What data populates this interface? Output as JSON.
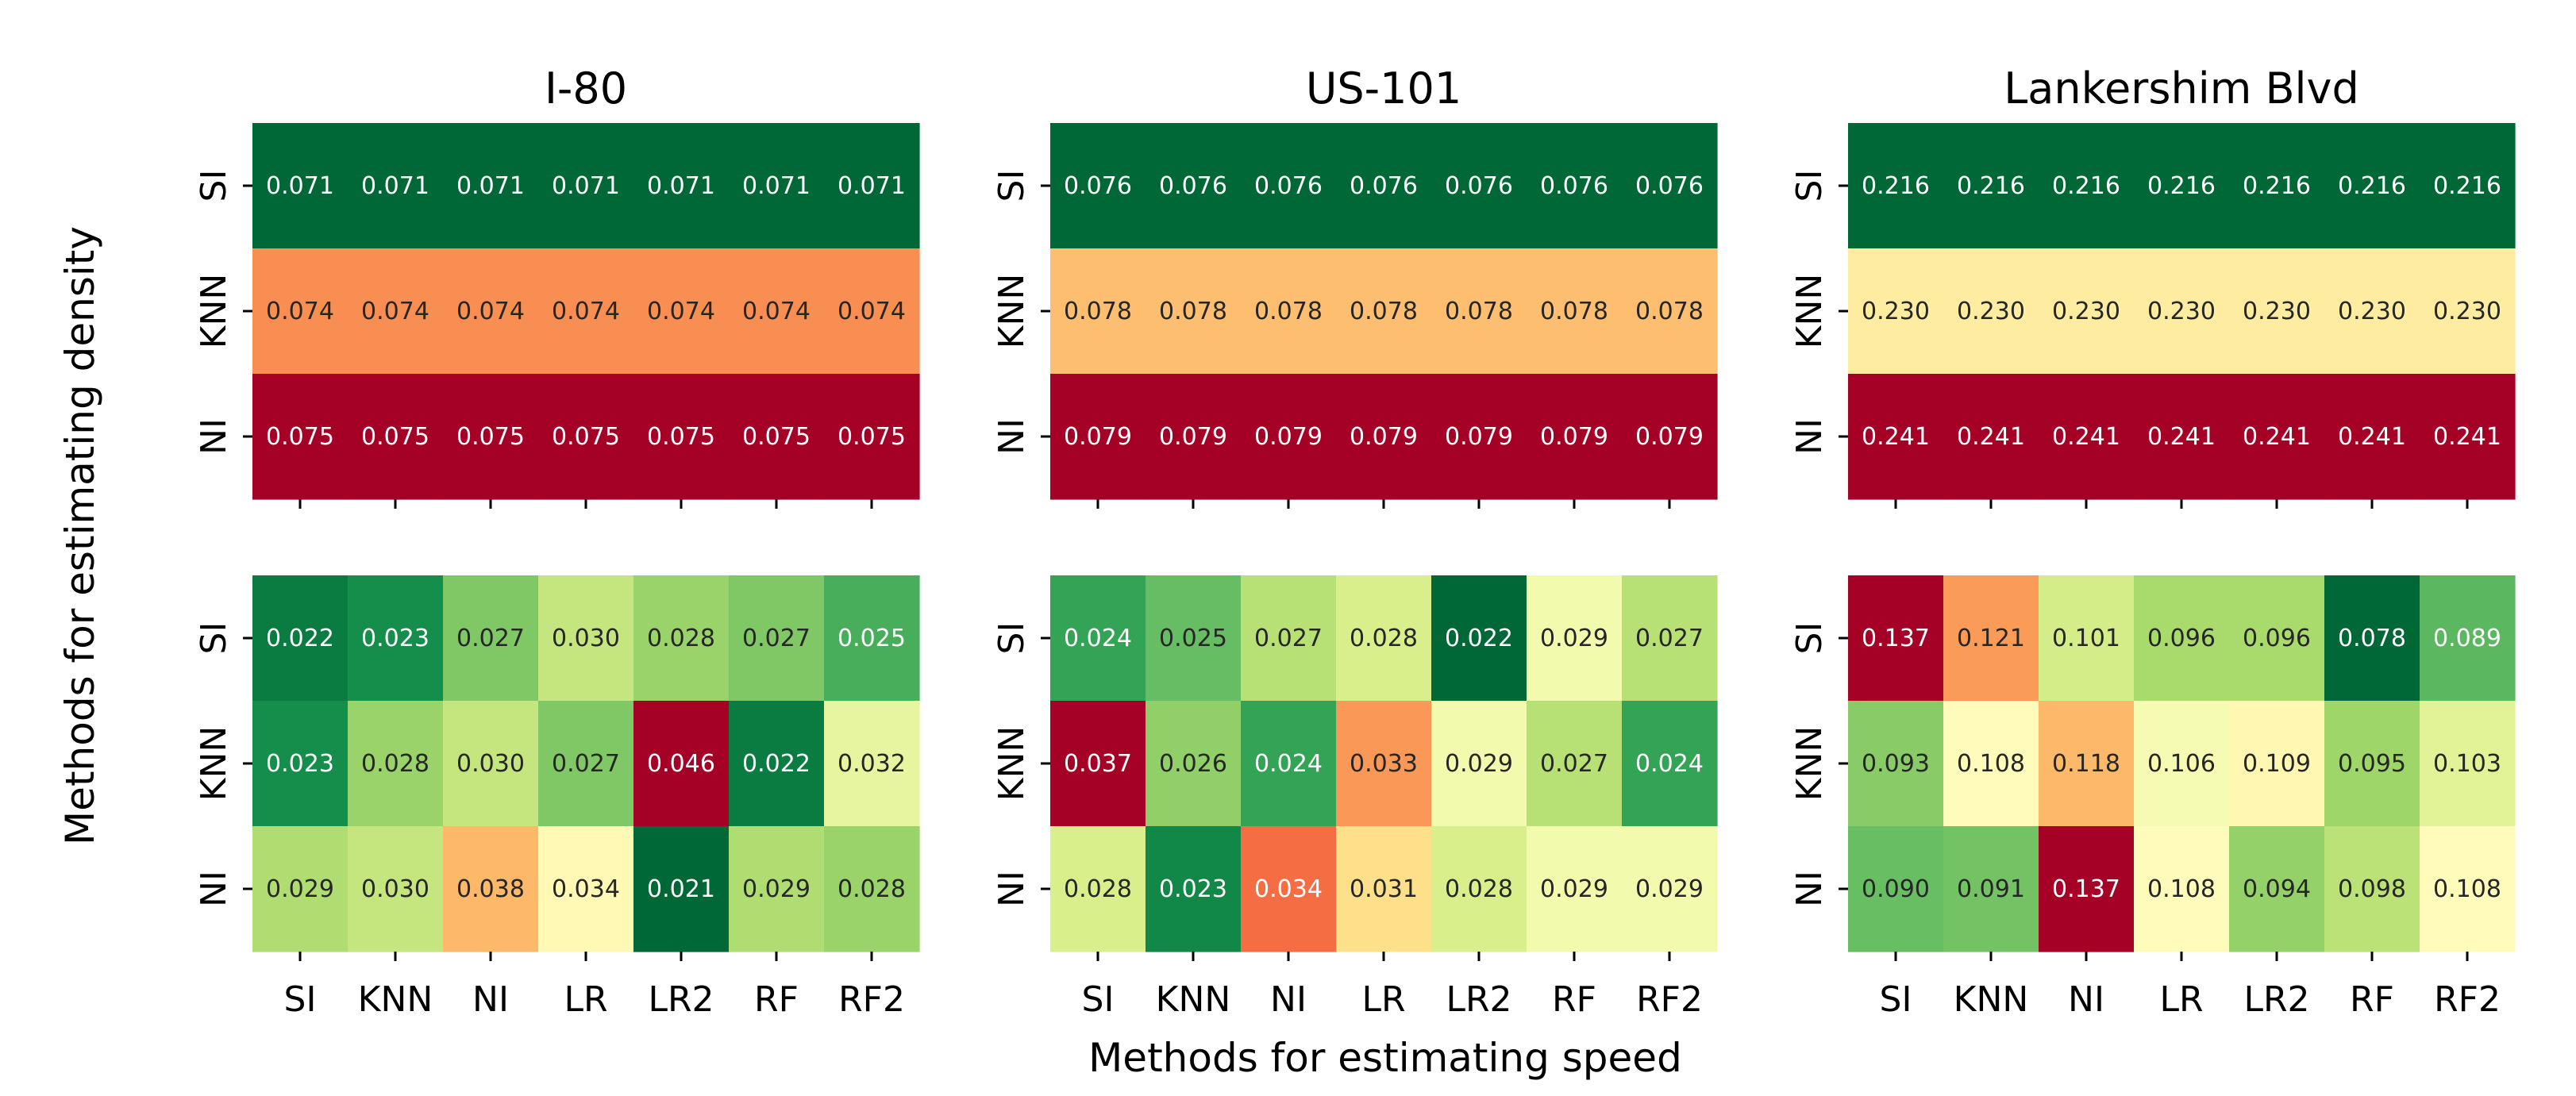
{
  "chart_data": {
    "type": "heatmap",
    "xlabel": "Methods for estimating speed",
    "ylabel": "Methods for estimating density",
    "x_categories": [
      "SI",
      "KNN",
      "NI",
      "LR",
      "LR2",
      "RF",
      "RF2"
    ],
    "y_categories": [
      "SI",
      "KNN",
      "NI"
    ],
    "colormap": "RdYlGn_r",
    "panels": [
      {
        "title": "I-80",
        "top": [
          [
            "0.071",
            "0.071",
            "0.071",
            "0.071",
            "0.071",
            "0.071",
            "0.071"
          ],
          [
            "0.074",
            "0.074",
            "0.074",
            "0.074",
            "0.074",
            "0.074",
            "0.074"
          ],
          [
            "0.075",
            "0.075",
            "0.075",
            "0.075",
            "0.075",
            "0.075",
            "0.075"
          ]
        ],
        "bottom": [
          [
            "0.022",
            "0.023",
            "0.027",
            "0.030",
            "0.028",
            "0.027",
            "0.025"
          ],
          [
            "0.023",
            "0.028",
            "0.030",
            "0.027",
            "0.046",
            "0.022",
            "0.032"
          ],
          [
            "0.029",
            "0.030",
            "0.038",
            "0.034",
            "0.021",
            "0.029",
            "0.028"
          ]
        ]
      },
      {
        "title": "US-101",
        "top": [
          [
            "0.076",
            "0.076",
            "0.076",
            "0.076",
            "0.076",
            "0.076",
            "0.076"
          ],
          [
            "0.078",
            "0.078",
            "0.078",
            "0.078",
            "0.078",
            "0.078",
            "0.078"
          ],
          [
            "0.079",
            "0.079",
            "0.079",
            "0.079",
            "0.079",
            "0.079",
            "0.079"
          ]
        ],
        "bottom": [
          [
            "0.024",
            "0.025",
            "0.027",
            "0.028",
            "0.022",
            "0.029",
            "0.027"
          ],
          [
            "0.037",
            "0.026",
            "0.024",
            "0.033",
            "0.029",
            "0.027",
            "0.024"
          ],
          [
            "0.028",
            "0.023",
            "0.034",
            "0.031",
            "0.028",
            "0.029",
            "0.029"
          ]
        ]
      },
      {
        "title": "Lankershim Blvd",
        "top": [
          [
            "0.216",
            "0.216",
            "0.216",
            "0.216",
            "0.216",
            "0.216",
            "0.216"
          ],
          [
            "0.230",
            "0.230",
            "0.230",
            "0.230",
            "0.230",
            "0.230",
            "0.230"
          ],
          [
            "0.241",
            "0.241",
            "0.241",
            "0.241",
            "0.241",
            "0.241",
            "0.241"
          ]
        ],
        "bottom": [
          [
            "0.137",
            "0.121",
            "0.101",
            "0.096",
            "0.096",
            "0.078",
            "0.089"
          ],
          [
            "0.093",
            "0.108",
            "0.118",
            "0.106",
            "0.109",
            "0.095",
            "0.103"
          ],
          [
            "0.090",
            "0.091",
            "0.137",
            "0.108",
            "0.094",
            "0.098",
            "0.108"
          ]
        ]
      }
    ]
  }
}
